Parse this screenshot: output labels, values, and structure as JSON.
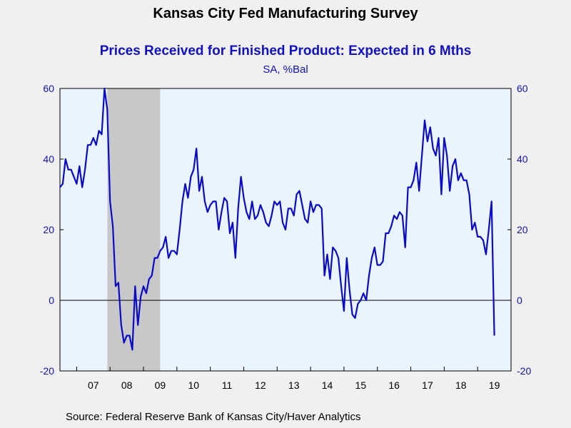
{
  "header": {
    "title": "Kansas City Fed Manufacturing Survey",
    "subtitle": "Prices Received for Finished Product: Expected in 6 Mths",
    "units": "SA, %Bal"
  },
  "footer": {
    "source": "Source:  Federal Reserve Bank of Kansas City/Haver Analytics"
  },
  "colors": {
    "line": "#0a0ac8",
    "plot_bg": "#eaf4fe",
    "recession": "#c8c8c8",
    "axis_text": "#1010c8"
  },
  "chart_data": {
    "type": "line",
    "title": "Prices Received for Finished Product: Expected in 6 Mths",
    "ylabel": "SA, %Bal",
    "xlim": [
      2006.5,
      2020.0
    ],
    "ylim": [
      -20,
      60
    ],
    "yticks": [
      -20,
      0,
      20,
      40,
      60
    ],
    "x_tick_labels": [
      "07",
      "08",
      "09",
      "10",
      "11",
      "12",
      "13",
      "14",
      "15",
      "16",
      "17",
      "18",
      "19"
    ],
    "x_tick_years": [
      2007,
      2008,
      2009,
      2010,
      2011,
      2012,
      2013,
      2014,
      2015,
      2016,
      2017,
      2018,
      2019
    ],
    "recession": [
      2007.917,
      2009.5
    ],
    "zero_line": true,
    "series": [
      {
        "x_start": 2006.5,
        "x_step": 0.08333,
        "values": [
          32,
          33,
          40,
          37,
          37,
          35,
          33,
          38,
          32,
          37,
          44,
          44,
          46,
          44,
          48,
          47,
          60,
          54,
          28,
          21,
          4,
          5,
          -7,
          -12,
          -10,
          -10,
          -14,
          4,
          -7,
          1,
          4,
          2,
          6,
          7,
          12,
          12,
          14,
          15,
          18,
          12,
          14,
          14,
          13,
          20,
          28,
          33,
          29,
          35,
          37,
          43,
          31,
          35,
          28,
          25,
          27,
          28,
          28,
          20,
          25,
          29,
          28,
          19,
          22,
          12,
          26,
          35,
          29,
          25,
          23,
          28,
          23,
          24,
          27,
          25,
          22,
          21,
          24,
          28,
          27,
          28,
          22,
          20,
          26,
          26,
          24,
          30,
          31,
          27,
          23,
          22,
          28,
          25,
          27,
          27,
          26,
          7,
          13,
          6,
          15,
          14,
          12,
          4,
          -3,
          12,
          3,
          -4,
          -5,
          -1,
          0,
          2,
          0,
          7,
          12,
          15,
          10,
          10,
          11,
          19,
          19,
          21,
          24,
          23,
          25,
          24,
          15,
          32,
          32,
          34,
          39,
          31,
          41,
          51,
          45,
          49,
          43,
          41,
          46,
          30,
          46,
          41,
          31,
          38,
          40,
          34,
          36,
          34,
          34,
          30,
          20,
          22,
          18,
          18,
          17,
          13,
          20,
          28,
          -10
        ]
      }
    ]
  }
}
